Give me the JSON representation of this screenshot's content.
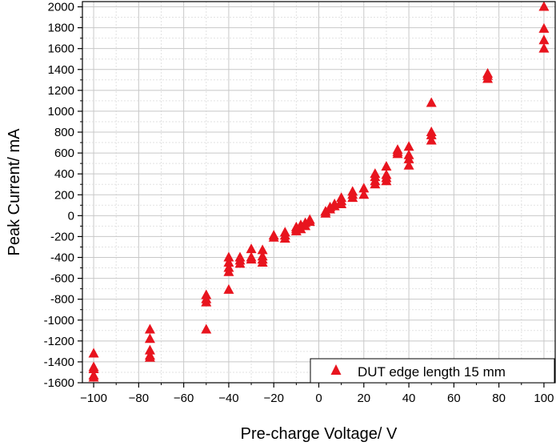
{
  "chart_data": {
    "type": "scatter",
    "title": "",
    "xlabel": "Pre-charge Voltage/ V",
    "ylabel": "Peak Current/ mA",
    "xlim": [
      -105,
      105
    ],
    "ylim": [
      -1600,
      2050
    ],
    "x_ticks": [
      -100,
      -80,
      -60,
      -40,
      -20,
      0,
      20,
      40,
      60,
      80,
      100
    ],
    "x_tick_labels": [
      "−100",
      "−80",
      "−60",
      "−40",
      "−20",
      "0",
      "20",
      "40",
      "60",
      "80",
      "100"
    ],
    "y_ticks": [
      -1600,
      -1400,
      -1200,
      -1000,
      -800,
      -600,
      -400,
      -200,
      0,
      200,
      400,
      600,
      800,
      1000,
      1200,
      1400,
      1600,
      1800,
      2000
    ],
    "y_tick_labels": [
      "-1600",
      "-1400",
      "-1200",
      "-1000",
      "-800",
      "-600",
      "-400",
      "-200",
      "0",
      "200",
      "400",
      "600",
      "800",
      "1000",
      "1200",
      "1400",
      "1600",
      "1800",
      "2000"
    ],
    "grid": true,
    "legend_position": "bottom-right",
    "series": [
      {
        "name": "DUT edge length 15 mm",
        "color": "#e8141e",
        "marker": "triangle-up",
        "points": [
          [
            -100,
            -1320
          ],
          [
            -100,
            -1450
          ],
          [
            -100,
            -1470
          ],
          [
            -100,
            -1530
          ],
          [
            -100,
            -1550
          ],
          [
            -75,
            -1090
          ],
          [
            -75,
            -1180
          ],
          [
            -75,
            -1290
          ],
          [
            -75,
            -1340
          ],
          [
            -75,
            -1360
          ],
          [
            -50,
            -760
          ],
          [
            -50,
            -800
          ],
          [
            -50,
            -830
          ],
          [
            -50,
            -1090
          ],
          [
            -40,
            -400
          ],
          [
            -40,
            -450
          ],
          [
            -40,
            -500
          ],
          [
            -40,
            -540
          ],
          [
            -40,
            -710
          ],
          [
            -35,
            -400
          ],
          [
            -35,
            -430
          ],
          [
            -35,
            -460
          ],
          [
            -30,
            -320
          ],
          [
            -30,
            -400
          ],
          [
            -30,
            -420
          ],
          [
            -25,
            -330
          ],
          [
            -25,
            -390
          ],
          [
            -25,
            -420
          ],
          [
            -25,
            -450
          ],
          [
            -20,
            -190
          ],
          [
            -20,
            -210
          ],
          [
            -15,
            -160
          ],
          [
            -15,
            -190
          ],
          [
            -15,
            -220
          ],
          [
            -10,
            -110
          ],
          [
            -10,
            -130
          ],
          [
            -10,
            -150
          ],
          [
            -8,
            -90
          ],
          [
            -8,
            -130
          ],
          [
            -6,
            -70
          ],
          [
            -6,
            -100
          ],
          [
            -4,
            -40
          ],
          [
            -4,
            -60
          ],
          [
            3,
            20
          ],
          [
            3,
            40
          ],
          [
            5,
            60
          ],
          [
            5,
            80
          ],
          [
            7,
            90
          ],
          [
            7,
            110
          ],
          [
            10,
            110
          ],
          [
            10,
            140
          ],
          [
            10,
            170
          ],
          [
            15,
            170
          ],
          [
            15,
            200
          ],
          [
            15,
            230
          ],
          [
            20,
            200
          ],
          [
            20,
            260
          ],
          [
            25,
            300
          ],
          [
            25,
            330
          ],
          [
            25,
            370
          ],
          [
            25,
            400
          ],
          [
            30,
            330
          ],
          [
            30,
            360
          ],
          [
            30,
            390
          ],
          [
            30,
            470
          ],
          [
            35,
            590
          ],
          [
            35,
            610
          ],
          [
            35,
            630
          ],
          [
            40,
            480
          ],
          [
            40,
            540
          ],
          [
            40,
            580
          ],
          [
            40,
            660
          ],
          [
            50,
            720
          ],
          [
            50,
            770
          ],
          [
            50,
            800
          ],
          [
            50,
            1080
          ],
          [
            75,
            1310
          ],
          [
            75,
            1340
          ],
          [
            75,
            1360
          ],
          [
            100,
            1600
          ],
          [
            100,
            1680
          ],
          [
            100,
            1790
          ],
          [
            100,
            2000
          ]
        ]
      }
    ]
  }
}
